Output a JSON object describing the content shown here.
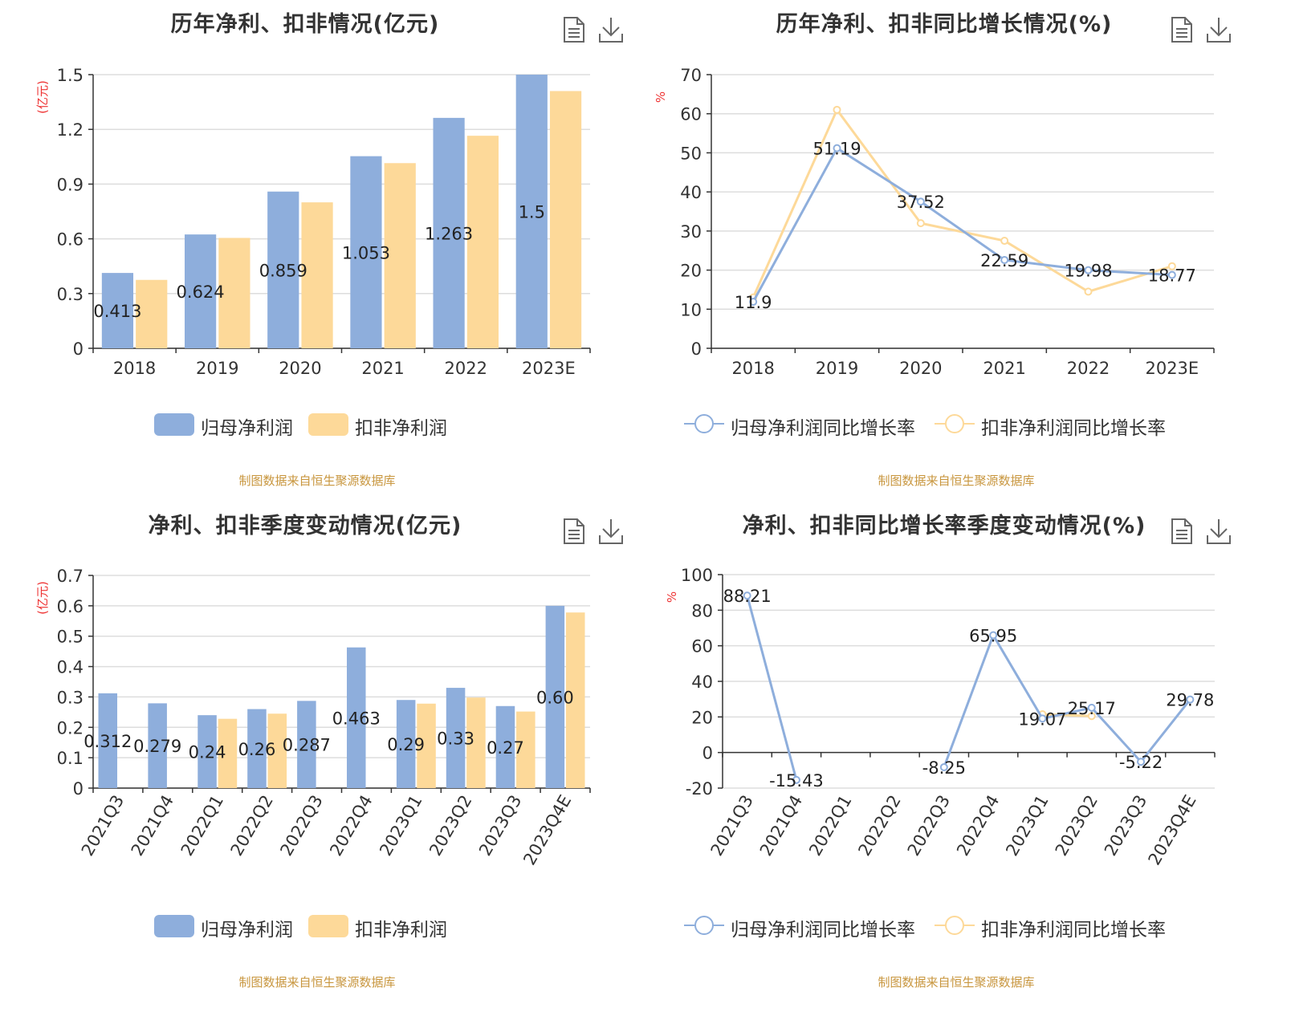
{
  "colors": {
    "blue": "#8eaedc",
    "orange": "#fdd999",
    "axis": "#333333",
    "grid": "#dddddd",
    "unit": "#ee3333",
    "source": "#c8963e"
  },
  "panels": [
    {
      "title": "历年净利、扣非情况(亿元)",
      "source": "制图数据来自恒生聚源数据库",
      "legend": [
        "归母净利润",
        "扣非净利润"
      ],
      "tools": {
        "data_view": "data-view-icon",
        "download": "download-icon"
      }
    },
    {
      "title": "历年净利、扣非同比增长情况(%)",
      "source": "制图数据来自恒生聚源数据库",
      "legend": [
        "归母净利润同比增长率",
        "扣非净利润同比增长率"
      ],
      "tools": {
        "data_view": "data-view-icon",
        "download": "download-icon"
      }
    },
    {
      "title": "净利、扣非季度变动情况(亿元)",
      "source": "制图数据来自恒生聚源数据库",
      "legend": [
        "归母净利润",
        "扣非净利润"
      ],
      "tools": {
        "data_view": "data-view-icon",
        "download": "download-icon"
      }
    },
    {
      "title": "净利、扣非同比增长率季度变动情况(%)",
      "source": "制图数据来自恒生聚源数据库",
      "legend": [
        "归母净利润同比增长率",
        "扣非净利润同比增长率"
      ],
      "tools": {
        "data_view": "data-view-icon",
        "download": "download-icon"
      }
    }
  ],
  "chart_data": [
    {
      "type": "bar",
      "title": "历年净利、扣非情况(亿元)",
      "ylabel": "(亿元)",
      "categories": [
        "2018",
        "2019",
        "2020",
        "2021",
        "2022",
        "2023E"
      ],
      "ylim": [
        0,
        1.5
      ],
      "yticks": [
        "0",
        "0.3",
        "0.6",
        "0.9",
        "1.2",
        "1.5"
      ],
      "series": [
        {
          "name": "归母净利润",
          "values": [
            0.413,
            0.624,
            0.859,
            1.053,
            1.263,
            1.5
          ],
          "labels": [
            "0.413",
            "0.624",
            "0.859",
            "1.053",
            "1.263",
            "1.5"
          ]
        },
        {
          "name": "扣非净利润",
          "values": [
            0.375,
            0.605,
            0.8,
            1.015,
            1.165,
            1.41
          ]
        }
      ],
      "grid": true,
      "legend": "bottom"
    },
    {
      "type": "line",
      "title": "历年净利、扣非同比增长情况(%)",
      "ylabel": "%",
      "categories": [
        "2018",
        "2019",
        "2020",
        "2021",
        "2022",
        "2023E"
      ],
      "ylim": [
        0,
        70
      ],
      "yticks": [
        "0",
        "10",
        "20",
        "30",
        "40",
        "50",
        "60",
        "70"
      ],
      "series": [
        {
          "name": "归母净利润同比增长率",
          "values": [
            11.9,
            51.19,
            37.52,
            22.59,
            19.98,
            18.77
          ],
          "labels": [
            "11.9",
            "51.19",
            "37.52",
            "22.59",
            "19.98",
            "18.77"
          ]
        },
        {
          "name": "扣非净利润同比增长率",
          "values": [
            13,
            61,
            32,
            27.5,
            14.5,
            21
          ]
        }
      ],
      "grid": true,
      "legend": "bottom"
    },
    {
      "type": "bar",
      "title": "净利、扣非季度变动情况(亿元)",
      "ylabel": "(亿元)",
      "categories": [
        "2021Q3",
        "2021Q4",
        "2022Q1",
        "2022Q2",
        "2022Q3",
        "2022Q4",
        "2023Q1",
        "2023Q2",
        "2023Q3",
        "2023Q4E"
      ],
      "ylim": [
        0,
        0.7
      ],
      "yticks": [
        "0",
        "0.1",
        "0.2",
        "0.3",
        "0.4",
        "0.5",
        "0.6",
        "0.7"
      ],
      "series": [
        {
          "name": "归母净利润",
          "values": [
            0.312,
            0.279,
            0.24,
            0.26,
            0.287,
            0.463,
            0.29,
            0.33,
            0.27,
            0.6
          ],
          "labels": [
            "0.312",
            "0.279",
            "0.24",
            "0.26",
            "0.287",
            "0.463",
            "0.29",
            "0.33",
            "0.27",
            "0.60"
          ]
        },
        {
          "name": "扣非净利润",
          "values": [
            null,
            null,
            0.228,
            0.245,
            null,
            null,
            0.278,
            0.298,
            0.252,
            0.578
          ]
        }
      ],
      "grid": true,
      "legend": "bottom"
    },
    {
      "type": "line",
      "title": "净利、扣非同比增长率季度变动情况(%)",
      "ylabel": "%",
      "categories": [
        "2021Q3",
        "2021Q4",
        "2022Q1",
        "2022Q2",
        "2022Q3",
        "2022Q4",
        "2023Q1",
        "2023Q2",
        "2023Q3",
        "2023Q4E"
      ],
      "ylim": [
        -20,
        100
      ],
      "yticks": [
        "-20",
        "0",
        "20",
        "40",
        "60",
        "80",
        "100"
      ],
      "series": [
        {
          "name": "归母净利润同比增长率",
          "values": [
            88.21,
            -15.43,
            null,
            null,
            -8.25,
            65.95,
            19.07,
            25.17,
            -5.22,
            29.78
          ],
          "labels": [
            "88.21",
            "-15.43",
            "",
            "",
            "-8.25",
            "65.95",
            "19.07",
            "25.17",
            "-5.22",
            "29.78"
          ]
        },
        {
          "name": "扣非净利润同比增长率",
          "values": [
            null,
            null,
            null,
            null,
            null,
            null,
            21.5,
            20.5,
            null,
            null
          ]
        }
      ],
      "grid": true,
      "legend": "bottom"
    }
  ]
}
